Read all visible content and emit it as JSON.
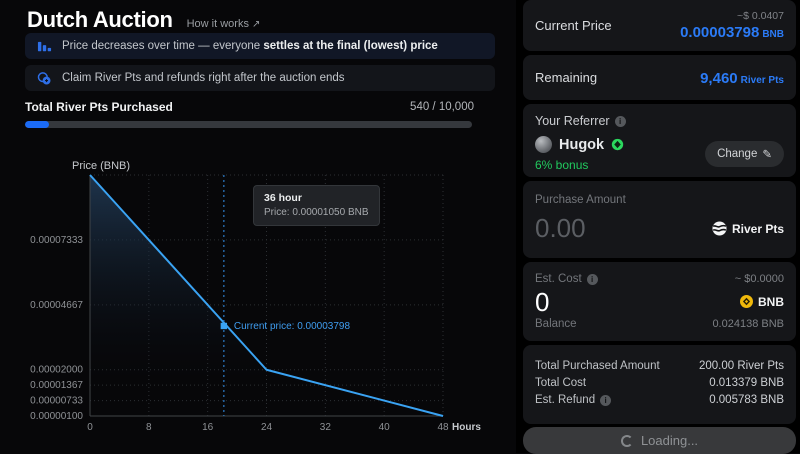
{
  "header": {
    "title": "Dutch Auction",
    "link_label": "How it works",
    "link_arrow": "↗"
  },
  "notices": [
    {
      "icon": "bar-chart-icon",
      "text_prefix": "Price decreases over time — everyone ",
      "text_bold": "settles at the final (lowest) price"
    },
    {
      "icon": "coins-icon",
      "text": "Claim River Pts and refunds right after the auction ends"
    }
  ],
  "progress": {
    "label": "Total River Pts Purchased",
    "value": "540 / 10,000",
    "percent": 5.4
  },
  "chart_data": {
    "type": "line",
    "title": "Dutch auction price curve",
    "ylabel": "Price (BNB)",
    "x_axis_suffix": "Hours",
    "xlim": [
      0,
      48
    ],
    "ylim": [
      1e-06,
      0.0001
    ],
    "x": [
      0,
      24,
      48
    ],
    "y": [
      0.0001,
      2e-05,
      1e-06
    ],
    "x_ticks": [
      0,
      8,
      16,
      24,
      32,
      40,
      48
    ],
    "y_ticks": [
      {
        "label": "0.00007333",
        "value": 7.333e-05
      },
      {
        "label": "0.00004667",
        "value": 4.667e-05
      },
      {
        "label": "0.00002000",
        "value": 2e-05
      },
      {
        "label": "0.00001367",
        "value": 1.367e-05
      },
      {
        "label": "0.00000733",
        "value": 7.33e-06
      },
      {
        "label": "0.00000100",
        "value": 1e-06
      }
    ],
    "grid": true,
    "current_point": {
      "x": 18.2,
      "y": 3.798e-05,
      "label": "Current price: 0.00003798"
    },
    "tooltip": {
      "title": "36 hour",
      "text": "Price: 0.00001050 BNB",
      "x": 36,
      "y": 1.05e-05
    }
  },
  "panel": {
    "current_price": {
      "label": "Current Price",
      "usd": "~$ 0.0407",
      "value": "0.00003798",
      "unit": "BNB"
    },
    "remaining": {
      "label": "Remaining",
      "value": "9,460",
      "unit": "River Pts"
    },
    "referrer": {
      "label": "Your Referrer",
      "name": "Hugok",
      "bonus": "6% bonus",
      "change_label": "Change",
      "edit_icon": "✎"
    },
    "purchase": {
      "label": "Purchase Amount",
      "value": "0.00",
      "token": "River Pts"
    },
    "cost": {
      "label": "Est. Cost",
      "usd": "~ $0.0000",
      "value": "0",
      "token": "BNB",
      "balance_label": "Balance",
      "balance_value": "0.024138 BNB"
    },
    "summary": {
      "rows": [
        {
          "label": "Total Purchased Amount",
          "value": "200.00 River Pts"
        },
        {
          "label": "Total Cost",
          "value": "0.013379 BNB"
        },
        {
          "label": "Est. Refund",
          "value": "0.005783 BNB"
        }
      ]
    },
    "action": {
      "label": "Loading..."
    }
  },
  "colors": {
    "accent_blue": "#2b7bf7",
    "chart_blue": "#3aa3f3",
    "progress_blue": "#1b6bf6",
    "green": "#21c95e",
    "bnb_yellow": "#f0b90b"
  }
}
